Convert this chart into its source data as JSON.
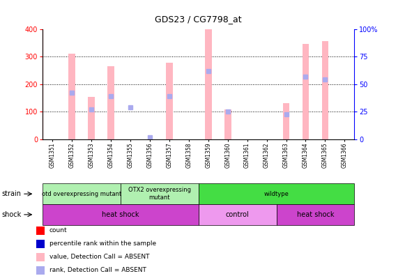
{
  "title": "GDS23 / CG7798_at",
  "samples": [
    "GSM1351",
    "GSM1352",
    "GSM1353",
    "GSM1354",
    "GSM1355",
    "GSM1356",
    "GSM1357",
    "GSM1358",
    "GSM1359",
    "GSM1360",
    "GSM1361",
    "GSM1362",
    "GSM1363",
    "GSM1364",
    "GSM1365",
    "GSM1366"
  ],
  "pink_bar_heights": [
    0,
    310,
    155,
    265,
    0,
    0,
    278,
    0,
    400,
    108,
    0,
    0,
    132,
    345,
    355,
    0
  ],
  "blue_bar_heights_pct": [
    0,
    42,
    27,
    39,
    29,
    2,
    39,
    0,
    62,
    25,
    0,
    0,
    23,
    57,
    54,
    0
  ],
  "ylim_left": [
    0,
    400
  ],
  "ylim_right": [
    0,
    100
  ],
  "yticks_left": [
    0,
    100,
    200,
    300,
    400
  ],
  "yticks_right": [
    0,
    25,
    50,
    75,
    100
  ],
  "pink_color": "#ffb6c1",
  "blue_color": "#aaaaee",
  "strain_groups": [
    {
      "label": "otd overexpressing mutant",
      "start": 0,
      "end": 4,
      "color": "#b0f0b0"
    },
    {
      "label": "OTX2 overexpressing\nmutant",
      "start": 4,
      "end": 8,
      "color": "#b0f0b0"
    },
    {
      "label": "wildtype",
      "start": 8,
      "end": 16,
      "color": "#44dd44"
    }
  ],
  "shock_groups": [
    {
      "label": "heat shock",
      "start": 0,
      "end": 8,
      "color": "#cc44cc"
    },
    {
      "label": "control",
      "start": 8,
      "end": 12,
      "color": "#ee99ee"
    },
    {
      "label": "heat shock",
      "start": 12,
      "end": 16,
      "color": "#cc44cc"
    }
  ],
  "legend_colors": [
    "#ff0000",
    "#0000cc",
    "#ffb6c1",
    "#aaaaee"
  ],
  "legend_labels": [
    "count",
    "percentile rank within the sample",
    "value, Detection Call = ABSENT",
    "rank, Detection Call = ABSENT"
  ]
}
